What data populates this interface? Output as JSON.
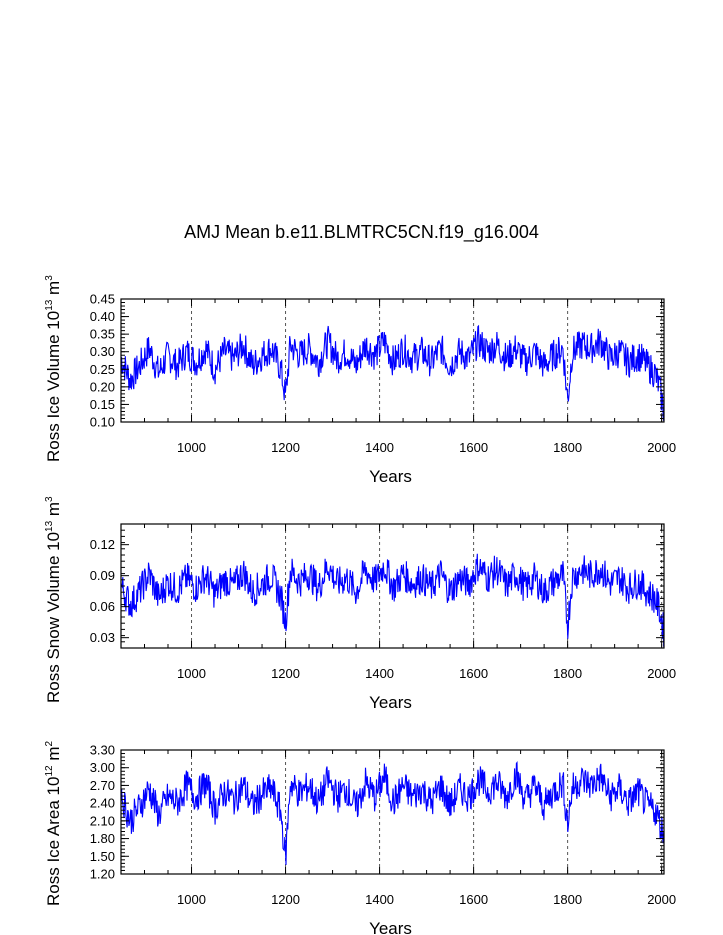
{
  "figure_title": "AMJ Mean b.e11.BLMTRC5CN.f19_g16.004",
  "colors": {
    "line": "#0000ff",
    "axis": "#000000",
    "refline": "#555555"
  },
  "chart_data": [
    {
      "type": "line",
      "title": "AMJ Mean b.e11.BLMTRC5CN.f19_g16.004",
      "xlabel": "Years",
      "ylabel": {
        "prefix": "Ross Ice Volume 10",
        "exp1": "13",
        "mid": " m",
        "exp2": "3"
      },
      "xlim": [
        850,
        2005
      ],
      "ylim": [
        0.1,
        0.45
      ],
      "xticks": [
        1000,
        1200,
        1400,
        1600,
        1800,
        2000
      ],
      "xtick_labels": [
        "1000",
        "1200",
        "1400",
        "1600",
        "1800",
        "2000"
      ],
      "yticks": [
        0.1,
        0.15,
        0.2,
        0.25,
        0.3,
        0.35,
        0.4,
        0.45
      ],
      "ytick_labels": [
        "0.10",
        "0.15",
        "0.20",
        "0.25",
        "0.30",
        "0.35",
        "0.40",
        "0.45"
      ],
      "dashed_verticals": [
        1000,
        1200,
        1400,
        1600,
        1800,
        2000
      ],
      "series": [
        {
          "name": "Ross Ice Volume",
          "x": [
            850,
            870,
            890,
            910,
            930,
            950,
            970,
            990,
            1010,
            1030,
            1050,
            1070,
            1090,
            1110,
            1130,
            1150,
            1170,
            1190,
            1200,
            1210,
            1230,
            1250,
            1270,
            1290,
            1310,
            1330,
            1350,
            1370,
            1390,
            1410,
            1430,
            1450,
            1470,
            1490,
            1510,
            1530,
            1550,
            1570,
            1590,
            1610,
            1630,
            1650,
            1670,
            1690,
            1710,
            1730,
            1750,
            1770,
            1790,
            1800,
            1810,
            1830,
            1850,
            1870,
            1890,
            1910,
            1930,
            1950,
            1970,
            1985,
            1995,
            2005
          ],
          "y": [
            0.28,
            0.22,
            0.26,
            0.31,
            0.24,
            0.29,
            0.26,
            0.3,
            0.27,
            0.31,
            0.25,
            0.3,
            0.28,
            0.32,
            0.26,
            0.29,
            0.31,
            0.25,
            0.17,
            0.32,
            0.29,
            0.31,
            0.27,
            0.33,
            0.28,
            0.3,
            0.26,
            0.32,
            0.29,
            0.33,
            0.27,
            0.31,
            0.28,
            0.3,
            0.27,
            0.31,
            0.26,
            0.3,
            0.28,
            0.33,
            0.3,
            0.32,
            0.28,
            0.31,
            0.27,
            0.3,
            0.26,
            0.29,
            0.31,
            0.16,
            0.3,
            0.32,
            0.31,
            0.33,
            0.28,
            0.3,
            0.27,
            0.29,
            0.26,
            0.24,
            0.2,
            0.13
          ]
        }
      ]
    },
    {
      "type": "line",
      "xlabel": "Years",
      "ylabel": {
        "prefix": "Ross Snow Volume 10",
        "exp1": "13",
        "mid": " m",
        "exp2": "3"
      },
      "xlim": [
        850,
        2005
      ],
      "ylim": [
        0.02,
        0.14
      ],
      "xticks": [
        1000,
        1200,
        1400,
        1600,
        1800,
        2000
      ],
      "xtick_labels": [
        "1000",
        "1200",
        "1400",
        "1600",
        "1800",
        "2000"
      ],
      "yticks": [
        0.03,
        0.06,
        0.09,
        0.12
      ],
      "ytick_labels": [
        "0.03",
        "0.06",
        "0.09",
        "0.12"
      ],
      "dashed_verticals": [
        1000,
        1200,
        1400,
        1600,
        1800,
        2000
      ],
      "series": [
        {
          "name": "Ross Snow Volume",
          "x": [
            850,
            870,
            890,
            910,
            930,
            950,
            970,
            990,
            1010,
            1030,
            1050,
            1070,
            1090,
            1110,
            1130,
            1150,
            1170,
            1190,
            1200,
            1210,
            1230,
            1250,
            1270,
            1290,
            1310,
            1330,
            1350,
            1370,
            1390,
            1410,
            1430,
            1450,
            1470,
            1490,
            1510,
            1530,
            1550,
            1570,
            1590,
            1610,
            1630,
            1650,
            1670,
            1690,
            1710,
            1730,
            1750,
            1770,
            1790,
            1800,
            1810,
            1830,
            1850,
            1870,
            1890,
            1910,
            1930,
            1950,
            1970,
            1985,
            1995,
            2005
          ],
          "y": [
            0.08,
            0.062,
            0.075,
            0.092,
            0.068,
            0.084,
            0.076,
            0.088,
            0.078,
            0.09,
            0.072,
            0.086,
            0.08,
            0.094,
            0.074,
            0.082,
            0.09,
            0.07,
            0.045,
            0.095,
            0.084,
            0.092,
            0.078,
            0.1,
            0.082,
            0.088,
            0.074,
            0.096,
            0.084,
            0.1,
            0.078,
            0.092,
            0.082,
            0.088,
            0.078,
            0.092,
            0.074,
            0.088,
            0.082,
            0.1,
            0.088,
            0.096,
            0.08,
            0.092,
            0.078,
            0.088,
            0.074,
            0.084,
            0.09,
            0.042,
            0.088,
            0.096,
            0.09,
            0.098,
            0.082,
            0.088,
            0.078,
            0.084,
            0.074,
            0.068,
            0.058,
            0.035
          ]
        }
      ]
    },
    {
      "type": "line",
      "xlabel": "Years",
      "ylabel": {
        "prefix": "Ross Ice Area 10",
        "exp1": "12",
        "mid": " m",
        "exp2": "2"
      },
      "xlim": [
        850,
        2005
      ],
      "ylim": [
        1.2,
        3.3
      ],
      "xticks": [
        1000,
        1200,
        1400,
        1600,
        1800,
        2000
      ],
      "xtick_labels": [
        "1000",
        "1200",
        "1400",
        "1600",
        "1800",
        "2000"
      ],
      "yticks": [
        1.2,
        1.5,
        1.8,
        2.1,
        2.4,
        2.7,
        3.0,
        3.3
      ],
      "ytick_labels": [
        "1.20",
        "1.50",
        "1.80",
        "2.10",
        "2.40",
        "2.70",
        "3.00",
        "3.30"
      ],
      "dashed_verticals": [
        1000,
        1200,
        1400,
        1600,
        1800,
        2000
      ],
      "series": [
        {
          "name": "Ross Ice Area",
          "x": [
            850,
            870,
            890,
            910,
            930,
            950,
            970,
            990,
            1010,
            1030,
            1050,
            1070,
            1090,
            1110,
            1130,
            1150,
            1170,
            1190,
            1200,
            1210,
            1230,
            1250,
            1270,
            1290,
            1310,
            1330,
            1350,
            1370,
            1390,
            1410,
            1430,
            1450,
            1470,
            1490,
            1510,
            1530,
            1550,
            1570,
            1590,
            1610,
            1630,
            1650,
            1670,
            1690,
            1710,
            1730,
            1750,
            1770,
            1790,
            1800,
            1810,
            1830,
            1850,
            1870,
            1890,
            1910,
            1930,
            1950,
            1970,
            1985,
            1995,
            2005
          ],
          "y": [
            2.55,
            2.1,
            2.35,
            2.65,
            2.2,
            2.5,
            2.4,
            2.7,
            2.5,
            2.75,
            2.3,
            2.6,
            2.45,
            2.7,
            2.35,
            2.55,
            2.65,
            2.25,
            1.45,
            2.75,
            2.55,
            2.7,
            2.4,
            2.8,
            2.5,
            2.65,
            2.3,
            2.75,
            2.5,
            2.85,
            2.4,
            2.7,
            2.5,
            2.65,
            2.4,
            2.7,
            2.35,
            2.65,
            2.5,
            2.8,
            2.6,
            2.75,
            2.5,
            2.9,
            2.45,
            2.7,
            2.35,
            2.6,
            2.75,
            2.05,
            2.65,
            2.8,
            2.7,
            2.85,
            2.5,
            2.65,
            2.4,
            2.6,
            2.35,
            2.3,
            2.1,
            1.85
          ]
        }
      ]
    }
  ]
}
